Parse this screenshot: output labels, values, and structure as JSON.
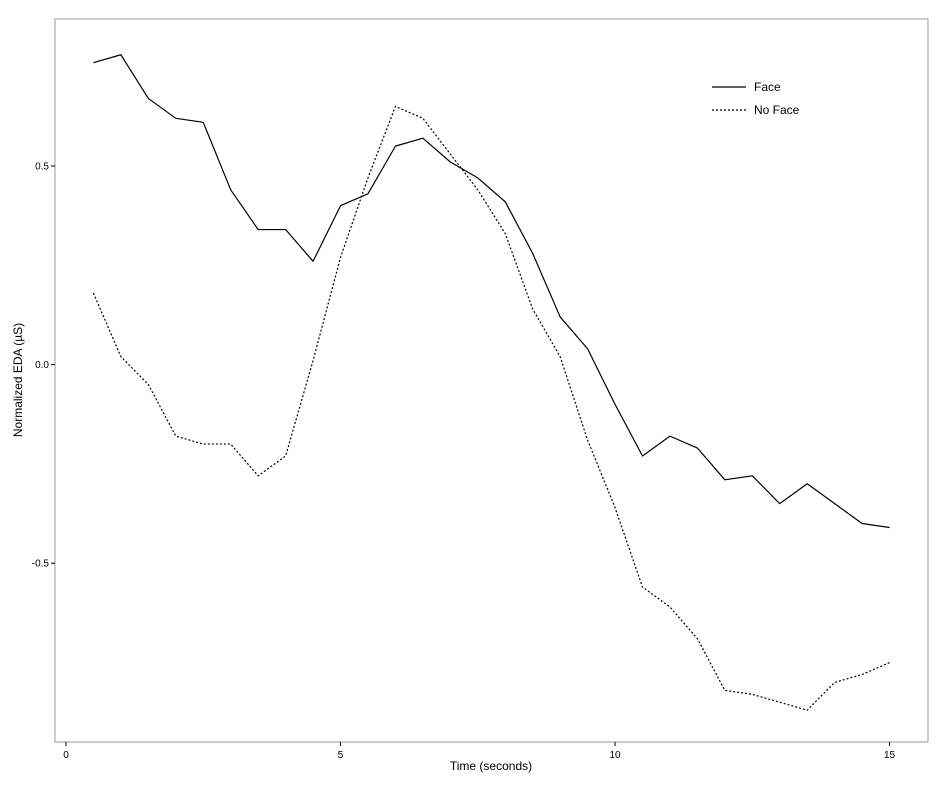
{
  "chart_data": {
    "type": "line",
    "title": "",
    "xlabel": "Time (seconds)",
    "ylabel": "Normalized EDA (µS)",
    "xlim": [
      -0.2,
      15.7
    ],
    "ylim": [
      -0.95,
      0.87
    ],
    "x_ticks": [
      0,
      5,
      10,
      15
    ],
    "x_tick_labels": [
      "0",
      "5",
      "10",
      "15"
    ],
    "y_ticks": [
      -0.5,
      0.0,
      0.5
    ],
    "y_tick_labels": [
      "-0.5",
      "0.0",
      "0.5"
    ],
    "grid": false,
    "legend_position": "top-right",
    "series": [
      {
        "name": "Face",
        "line_style": "solid",
        "color": "#000000",
        "x": [
          0.5,
          1.0,
          1.5,
          2.0,
          2.5,
          3.0,
          3.5,
          4.0,
          4.5,
          5.0,
          5.5,
          6.0,
          6.5,
          7.0,
          7.5,
          8.0,
          8.5,
          9.0,
          9.5,
          10.0,
          10.5,
          11.0,
          11.5,
          12.0,
          12.5,
          13.0,
          13.5,
          14.0,
          14.5,
          15.0
        ],
        "values": [
          0.76,
          0.78,
          0.67,
          0.62,
          0.61,
          0.44,
          0.34,
          0.34,
          0.26,
          0.4,
          0.43,
          0.55,
          0.57,
          0.51,
          0.47,
          0.41,
          0.28,
          0.12,
          0.04,
          -0.1,
          -0.23,
          -0.18,
          -0.21,
          -0.29,
          -0.28,
          -0.35,
          -0.3,
          -0.35,
          -0.4,
          -0.41
        ]
      },
      {
        "name": "No Face",
        "line_style": "dotted",
        "color": "#000000",
        "x": [
          0.5,
          1.0,
          1.5,
          2.0,
          2.5,
          3.0,
          3.5,
          4.0,
          4.5,
          5.0,
          5.5,
          6.0,
          6.5,
          7.0,
          7.5,
          8.0,
          8.5,
          9.0,
          9.5,
          10.0,
          10.5,
          11.0,
          11.5,
          12.0,
          12.5,
          13.0,
          13.5,
          14.0,
          14.5,
          15.0
        ],
        "values": [
          0.18,
          0.02,
          -0.05,
          -0.18,
          -0.2,
          -0.2,
          -0.28,
          -0.23,
          0.01,
          0.27,
          0.47,
          0.65,
          0.62,
          0.53,
          0.44,
          0.33,
          0.14,
          0.02,
          -0.19,
          -0.36,
          -0.56,
          -0.61,
          -0.69,
          -0.82,
          -0.83,
          -0.85,
          -0.87,
          -0.8,
          -0.78,
          -0.75
        ]
      }
    ]
  }
}
